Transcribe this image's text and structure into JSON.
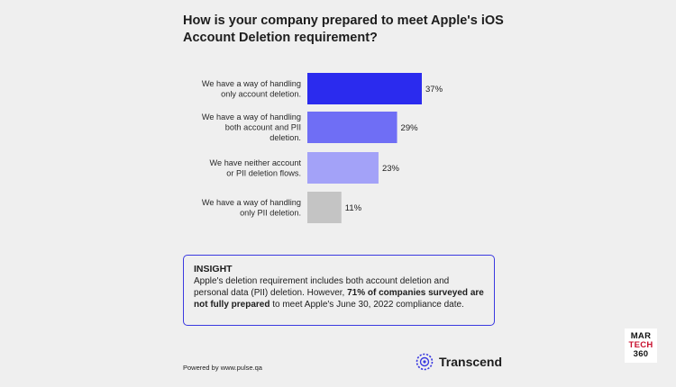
{
  "title": "How is your company prepared to meet Apple's iOS Account Deletion requirement?",
  "chart_data": {
    "type": "bar",
    "orientation": "horizontal",
    "title": "How is your company prepared to meet Apple's iOS Account Deletion requirement?",
    "categories": [
      [
        "We have a way of handling",
        "only account deletion."
      ],
      [
        "We have a way of handling",
        "both account and PII",
        "deletion."
      ],
      [
        "We have neither account",
        "or PII deletion flows."
      ],
      [
        "We have a way of handling",
        "only PII deletion."
      ]
    ],
    "values": [
      37,
      29,
      23,
      11
    ],
    "value_labels": [
      "37%",
      "29%",
      "23%",
      "11%"
    ],
    "colors": [
      "#2b2bee",
      "#6f6ef5",
      "#a3a2f8",
      "#c4c4c4"
    ],
    "xlim": [
      0,
      37
    ],
    "grid": false,
    "legend": "none"
  },
  "insight": {
    "heading": "INSIGHT",
    "text_1": "Apple's deletion requirement includes both account deletion and personal data (PII) deletion. However, ",
    "bold": "71% of companies surveyed are not fully prepared",
    "text_2": " to meet Apple's June 30, 2022 compliance date."
  },
  "footer": {
    "powered_by": "Powered by www.pulse.qa",
    "brand": "Transcend",
    "brand_icon": "transcend-ring-logo",
    "accent": "#3a39e0"
  },
  "watermark": {
    "line1": "MAR",
    "line2": "TECH",
    "line3": "360"
  }
}
